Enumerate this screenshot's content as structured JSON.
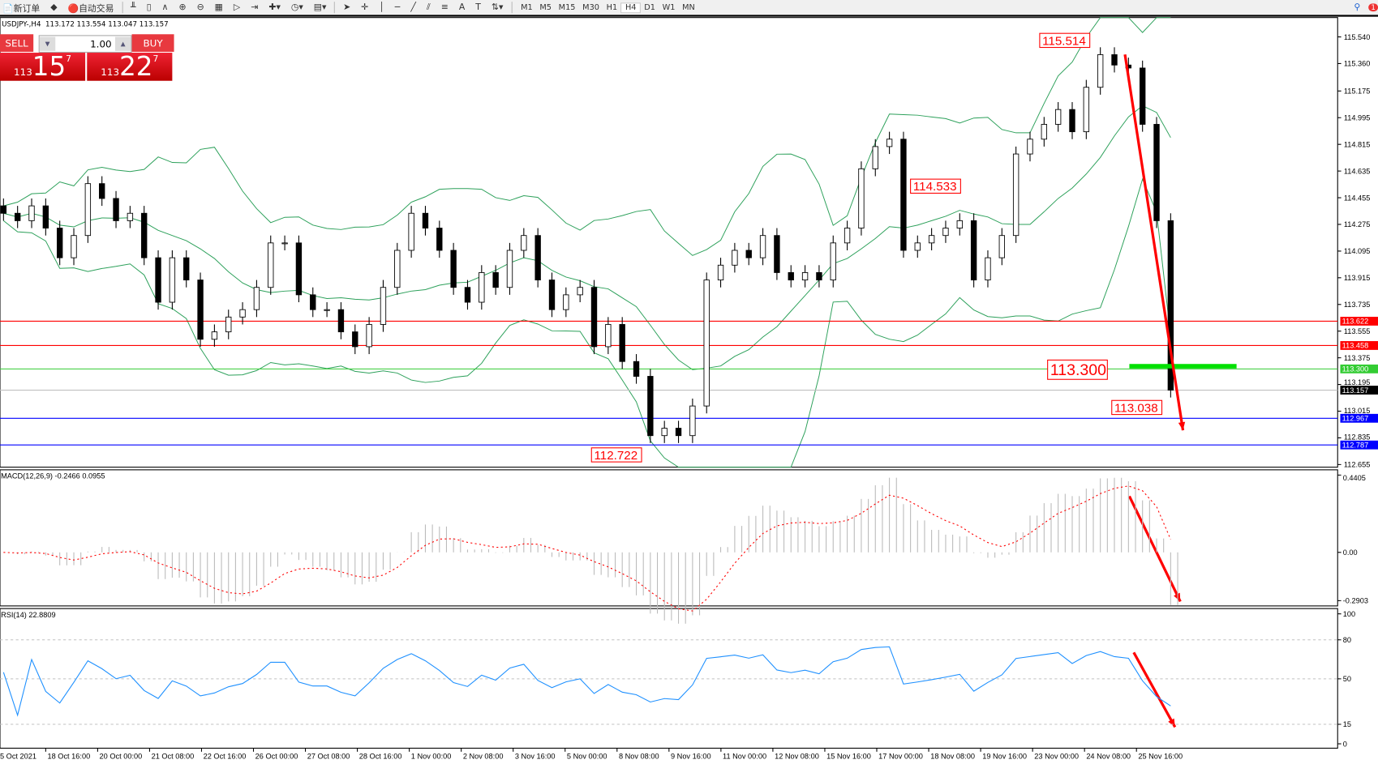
{
  "toolbar": {
    "new_order": "新订单",
    "auto_trading": "自动交易",
    "timeframes": [
      "M1",
      "M5",
      "M15",
      "M30",
      "H1",
      "H4",
      "D1",
      "W1",
      "MN"
    ],
    "active_timeframe": "H4",
    "notification_count": "1"
  },
  "chart_header": {
    "symbol": "USDJPY-,H4",
    "ohlc": "113.172 113.554 113.047 113.157"
  },
  "trade_panel": {
    "sell_label": "SELL",
    "buy_label": "BUY",
    "lot": "1.00",
    "sell_prefix": "113",
    "sell_big": "15",
    "sell_pip": "7",
    "buy_prefix": "113",
    "buy_big": "22",
    "buy_pip": "7"
  },
  "chart_data": [
    {
      "type": "candlestick",
      "symbol": "USDJPY",
      "timeframe": "H4",
      "y_ticks": [
        "115.540",
        "115.360",
        "115.175",
        "114.995",
        "114.815",
        "114.635",
        "114.455",
        "114.275",
        "114.095",
        "113.915",
        "113.735",
        "113.555",
        "113.375",
        "113.195",
        "113.015",
        "112.835",
        "112.655"
      ],
      "ylim": [
        112.655,
        115.54
      ],
      "x_ticks": [
        "5 Oct 2021",
        "18 Oct 16:00",
        "20 Oct 00:00",
        "21 Oct 08:00",
        "22 Oct 16:00",
        "26 Oct 00:00",
        "27 Oct 08:00",
        "28 Oct 16:00",
        "1 Nov 00:00",
        "2 Nov 08:00",
        "3 Nov 16:00",
        "5 Nov 00:00",
        "8 Nov 08:00",
        "9 Nov 16:00",
        "11 Nov 00:00",
        "12 Nov 08:00",
        "15 Nov 16:00",
        "17 Nov 00:00",
        "18 Nov 08:00",
        "19 Nov 16:00",
        "23 Nov 00:00",
        "24 Nov 08:00",
        "25 Nov 16:00"
      ],
      "close": [
        114.35,
        114.3,
        114.4,
        114.25,
        114.05,
        114.2,
        114.55,
        114.45,
        114.3,
        114.35,
        114.05,
        113.75,
        114.05,
        113.9,
        113.5,
        113.55,
        113.65,
        113.7,
        113.85,
        114.15,
        114.15,
        113.8,
        113.7,
        113.7,
        113.55,
        113.45,
        113.6,
        113.85,
        114.1,
        114.35,
        114.25,
        114.1,
        113.85,
        113.75,
        113.95,
        113.85,
        114.1,
        114.2,
        113.9,
        113.7,
        113.8,
        113.85,
        113.45,
        113.6,
        113.35,
        113.25,
        112.85,
        112.9,
        112.85,
        113.05,
        113.9,
        114.0,
        114.1,
        114.05,
        114.2,
        113.95,
        113.9,
        113.95,
        113.9,
        114.15,
        114.25,
        114.65,
        114.8,
        114.85,
        114.1,
        114.15,
        114.2,
        114.25,
        114.3,
        113.9,
        114.05,
        114.2,
        114.75,
        114.85,
        114.95,
        115.05,
        114.9,
        115.2,
        115.42,
        115.35,
        115.33,
        114.95,
        114.3,
        113.157
      ],
      "indicator": "Bollinger Bands",
      "levels": [
        {
          "value": "113.622",
          "color": "#ff0000"
        },
        {
          "value": "113.458",
          "color": "#ff0000"
        },
        {
          "value": "113.300",
          "color": "#33cc33"
        },
        {
          "value": "113.157",
          "color": "#000000"
        },
        {
          "value": "112.967",
          "color": "#0000ff"
        },
        {
          "value": "112.787",
          "color": "#0000ff"
        }
      ],
      "annotations": [
        "115.514",
        "114.533",
        "113.300",
        "113.038",
        "112.722"
      ]
    },
    {
      "type": "bar+line",
      "title": "MACD(12,26,9) -0.2466 0.0955",
      "y_ticks": [
        "0.4405",
        "0.00",
        "-0.2903"
      ],
      "ylim": [
        -0.2903,
        0.4405
      ]
    },
    {
      "type": "line",
      "title": "RSI(14) 22.8809",
      "y_ticks": [
        "100",
        "80",
        "50",
        "15",
        "0"
      ],
      "ylim": [
        0,
        100
      ],
      "levels": [
        80,
        50,
        15
      ],
      "color": "#1e90ff"
    }
  ]
}
